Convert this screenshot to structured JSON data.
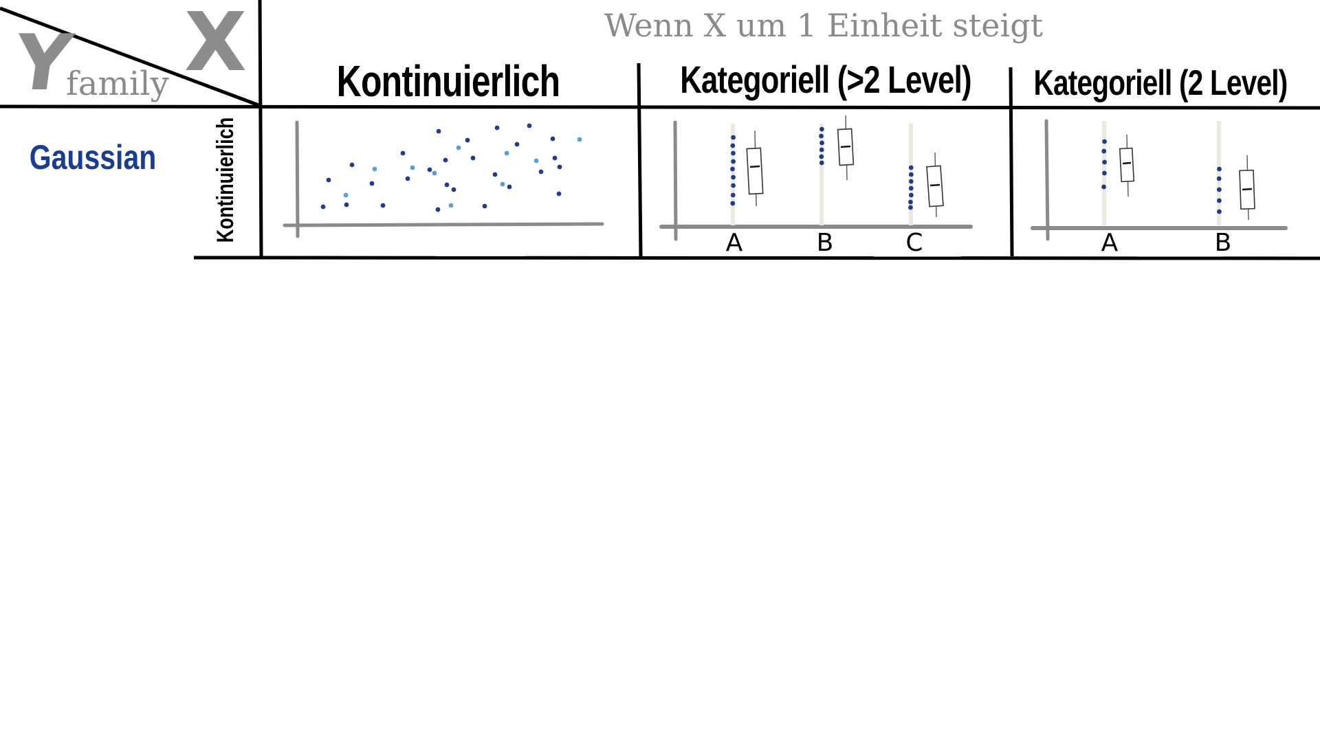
{
  "header": {
    "title": "Wenn X um 1 Einheit steigt",
    "corner_y": "Y",
    "corner_x": "X",
    "corner_label": "family"
  },
  "columns": [
    {
      "label": "Kontinuierlich"
    },
    {
      "label": "Kategoriell (>2 Level)"
    },
    {
      "label": "Kategoriell (2 Level)"
    }
  ],
  "row": {
    "family": "Gaussian",
    "y_type": "Kontinuierlich"
  },
  "panels": {
    "categorical_multi": {
      "categories": [
        "A",
        "B",
        "C"
      ]
    },
    "categorical_two": {
      "categories": [
        "A",
        "B"
      ]
    }
  },
  "colors": {
    "dot_dark": "#1f3c8a",
    "dot_light": "#5aa0d8",
    "axis": "#8a8a8a",
    "family_label": "#1a3d94",
    "grid_line": "#000000"
  }
}
